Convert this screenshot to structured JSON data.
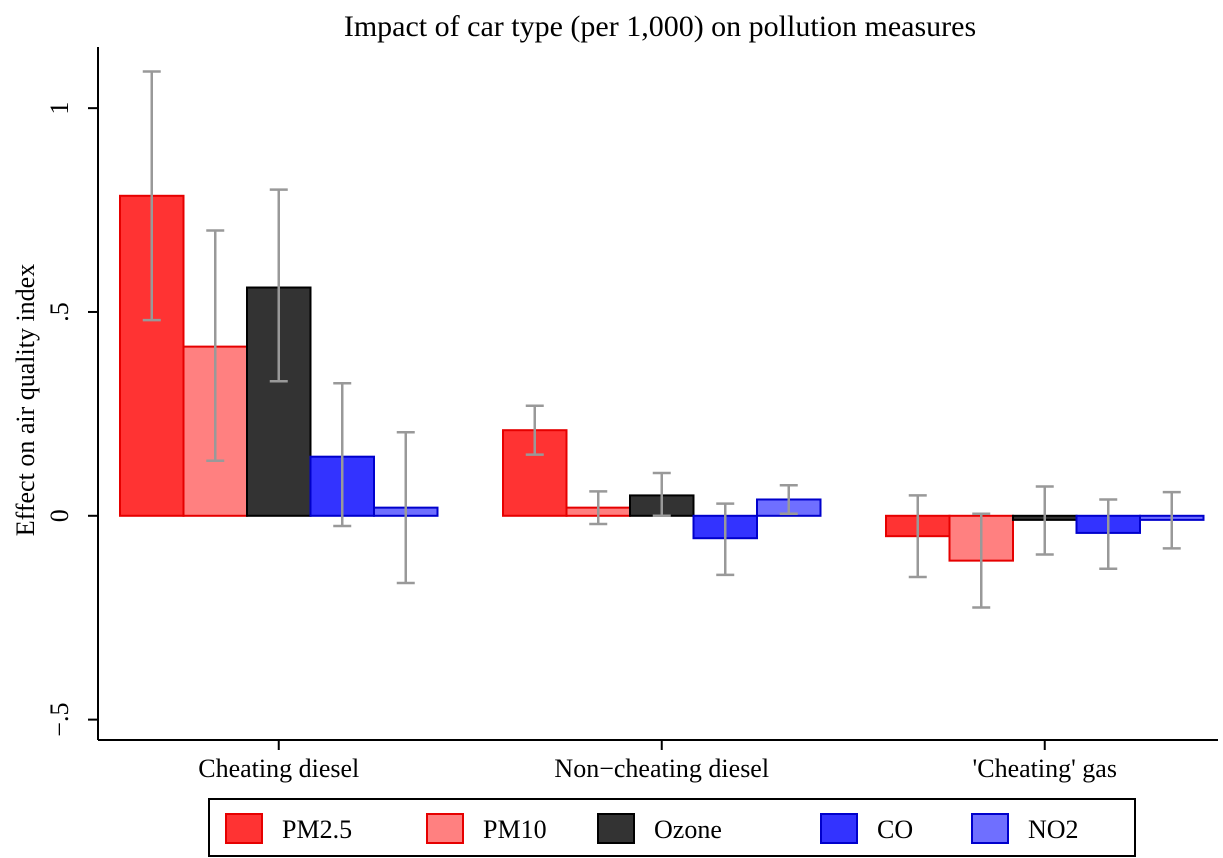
{
  "chart_data": {
    "type": "bar",
    "title": "Impact of car type (per 1,000) on pollution measures",
    "xlabel": "",
    "ylabel": "Effect on air quality index",
    "ylim": [
      -0.55,
      1.15
    ],
    "yticks": [
      -0.5,
      0,
      0.5,
      1
    ],
    "ytick_labels": [
      "−.5",
      "0",
      ".5",
      "1"
    ],
    "categories": [
      "Cheating diesel",
      "Non−cheating diesel",
      "'Cheating' gas"
    ],
    "series": [
      {
        "name": "PM2.5",
        "fill": "#ff3333",
        "stroke": "#e60000",
        "values": [
          0.785,
          0.21,
          -0.05
        ],
        "ci_low": [
          0.48,
          0.15,
          -0.15
        ],
        "ci_high": [
          1.09,
          0.27,
          0.05
        ]
      },
      {
        "name": "PM10",
        "fill": "#ff8080",
        "stroke": "#e60000",
        "values": [
          0.415,
          0.02,
          -0.11
        ],
        "ci_low": [
          0.135,
          -0.02,
          -0.225
        ],
        "ci_high": [
          0.7,
          0.06,
          0.005
        ]
      },
      {
        "name": "Ozone",
        "fill": "#333333",
        "stroke": "#000000",
        "values": [
          0.56,
          0.05,
          -0.01
        ],
        "ci_low": [
          0.33,
          0.0,
          -0.095
        ],
        "ci_high": [
          0.8,
          0.105,
          0.072
        ]
      },
      {
        "name": "CO",
        "fill": "#3333ff",
        "stroke": "#0000cc",
        "values": [
          0.145,
          -0.055,
          -0.042
        ],
        "ci_low": [
          -0.025,
          -0.145,
          -0.13
        ],
        "ci_high": [
          0.325,
          0.03,
          0.04
        ]
      },
      {
        "name": "NO2",
        "fill": "#6f6fff",
        "stroke": "#0000cc",
        "values": [
          0.02,
          0.04,
          -0.01
        ],
        "ci_low": [
          -0.165,
          0.005,
          -0.08
        ],
        "ci_high": [
          0.205,
          0.075,
          0.058
        ]
      }
    ],
    "error_bar_color": "#999999",
    "grid": false,
    "legend_position": "bottom"
  }
}
